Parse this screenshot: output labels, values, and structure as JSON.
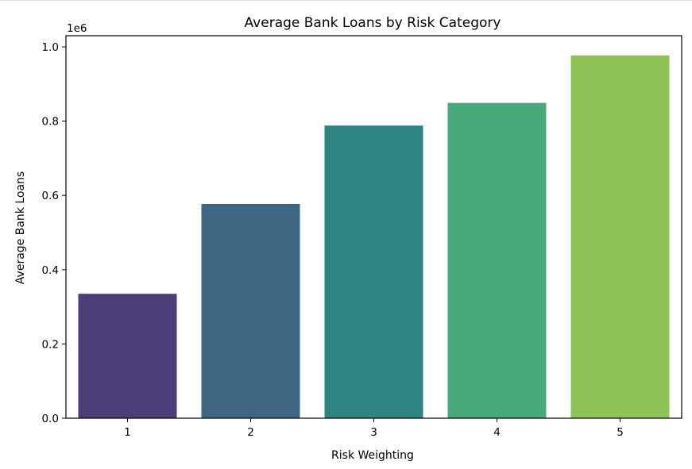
{
  "chart_data": {
    "type": "bar",
    "title": "Average Bank Loans by Risk Category",
    "xlabel": "Risk Weighting",
    "ylabel": "Average Bank Loans",
    "y_offset_label": "1e6",
    "categories": [
      "1",
      "2",
      "3",
      "4",
      "5"
    ],
    "values": [
      335000,
      577000,
      788000,
      849000,
      977000
    ],
    "colors": [
      "#4a3d78",
      "#3d6683",
      "#2e8480",
      "#48a97a",
      "#8ec455"
    ],
    "ylim": [
      0,
      1030000
    ],
    "yticks": [
      0,
      200000,
      400000,
      600000,
      800000,
      1000000
    ],
    "ytick_labels": [
      "0.0",
      "0.2",
      "0.4",
      "0.6",
      "0.8",
      "1.0"
    ],
    "grid": false,
    "legend": "none"
  }
}
